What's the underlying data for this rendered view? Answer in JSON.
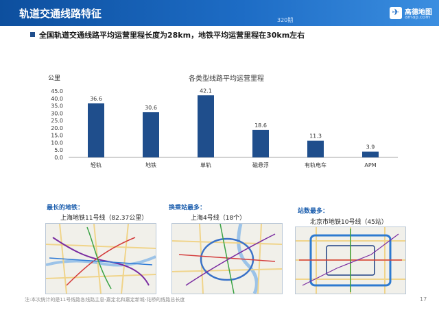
{
  "header": {
    "title": "轨道交通线路特征",
    "tag": "320期"
  },
  "logo": {
    "name": "高德地图",
    "url": "amap.com",
    "mark": "✈"
  },
  "headline": "全国轨道交通线路平均运营里程长度为28km，地铁平均运营里程在30km左右",
  "chart_data": {
    "type": "bar",
    "title": "各类型线路平均运营里程",
    "ylabel": "公里",
    "xlabel": "",
    "categories": [
      "轻轨",
      "地铁",
      "单轨",
      "磁悬浮",
      "有轨电车",
      "APM"
    ],
    "values": [
      36.6,
      30.6,
      42.1,
      18.6,
      11.3,
      3.9
    ],
    "value_labels": [
      "36.6",
      "30.6",
      "42.1",
      "18.6",
      "11.3",
      "3.9"
    ],
    "ylim": [
      0,
      45
    ],
    "yticks": [
      "0.0",
      "5.0",
      "10.0",
      "15.0",
      "20.0",
      "25.0",
      "30.0",
      "35.0",
      "40.0",
      "45.0"
    ],
    "grid": false,
    "bar_color": "#1f4e8c"
  },
  "sections": [
    {
      "label": "最长的地铁：",
      "caption": "上海地铁11号线（82.37公里）"
    },
    {
      "label": "换乘站最多：",
      "caption": "上海4号线（18个）"
    },
    {
      "label": "站数最多：",
      "caption": "北京市地铁10号线（45站）"
    }
  ],
  "footnote": "注:本次统计的是11号线路各线路主息-嘉定北和嘉定新城-花桥的线路总长度",
  "page_number": "17"
}
